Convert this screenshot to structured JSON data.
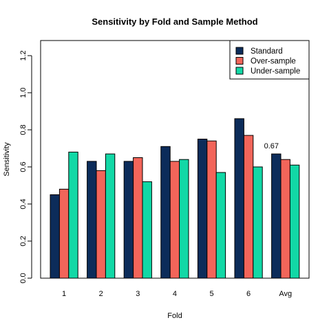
{
  "chart_data": {
    "type": "bar",
    "title": "Sensitivity by Fold and Sample Method",
    "xlabel": "Fold",
    "ylabel": "Sensitivity",
    "categories": [
      "1",
      "2",
      "3",
      "4",
      "5",
      "6",
      "Avg"
    ],
    "ylim": [
      0,
      1.28
    ],
    "yticks": [
      "0.0",
      "0.2",
      "0.4",
      "0.6",
      "0.8",
      "1.0",
      "1.2"
    ],
    "grid": false,
    "legend_position": "top-right",
    "series": [
      {
        "name": "Standard",
        "color": "#0c2c5a",
        "values": [
          0.45,
          0.63,
          0.63,
          0.71,
          0.75,
          0.86,
          0.67
        ]
      },
      {
        "name": "Over-sample",
        "color": "#f2655a",
        "values": [
          0.48,
          0.58,
          0.65,
          0.63,
          0.74,
          0.77,
          0.64
        ]
      },
      {
        "name": "Under-sample",
        "color": "#12d8a6",
        "values": [
          0.68,
          0.67,
          0.52,
          0.64,
          0.57,
          0.6,
          0.61
        ]
      }
    ],
    "annotations": [
      {
        "text": "0.67",
        "category": "Avg",
        "series": "Standard"
      }
    ]
  }
}
